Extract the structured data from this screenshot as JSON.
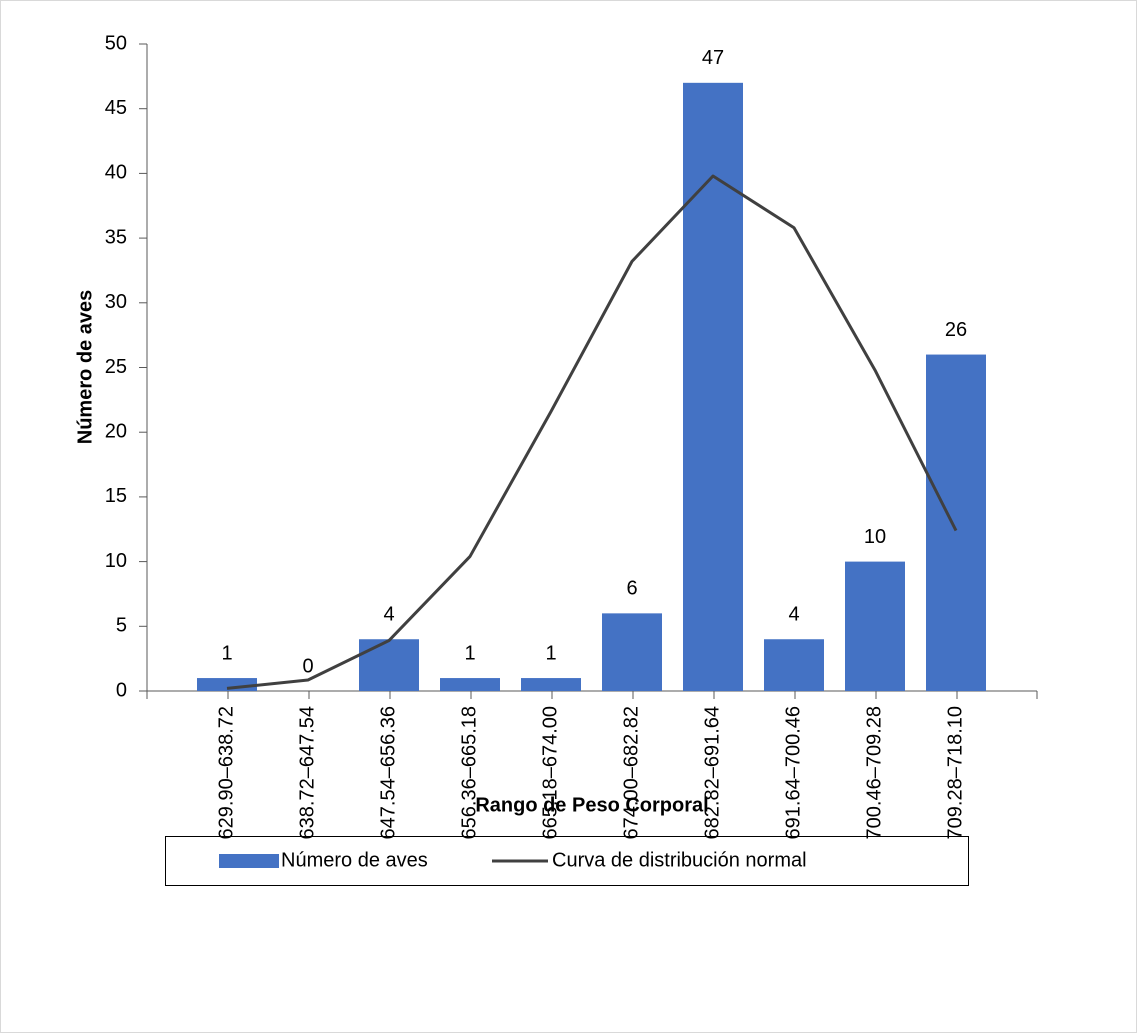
{
  "chart_data": {
    "type": "bar",
    "x_label": "Rango de Peso Corporal",
    "y_label": "Número de aves",
    "categories": [
      "629.90–638.72",
      "638.72–647.54",
      "647.54–656.36",
      "656.36–665.18",
      "665.18–674.00",
      "674.00–682.82",
      "682.82–691.64",
      "691.64–700.46",
      "700.46–709.28",
      "709.28–718.10"
    ],
    "series": [
      {
        "name": "Número de aves",
        "type": "bar",
        "color": "#4472c4",
        "values": [
          1,
          0,
          4,
          1,
          1,
          6,
          47,
          4,
          10,
          26
        ]
      },
      {
        "name": "Curva de distribución normal",
        "type": "line",
        "color": "#404040",
        "values": [
          0.2,
          0.85,
          3.9,
          10.4,
          21.6,
          33.2,
          39.8,
          35.8,
          24.8,
          12.4
        ]
      }
    ],
    "ylim": [
      0,
      50
    ],
    "yticks": [
      0,
      5,
      10,
      15,
      20,
      25,
      30,
      35,
      40,
      45,
      50
    ]
  }
}
